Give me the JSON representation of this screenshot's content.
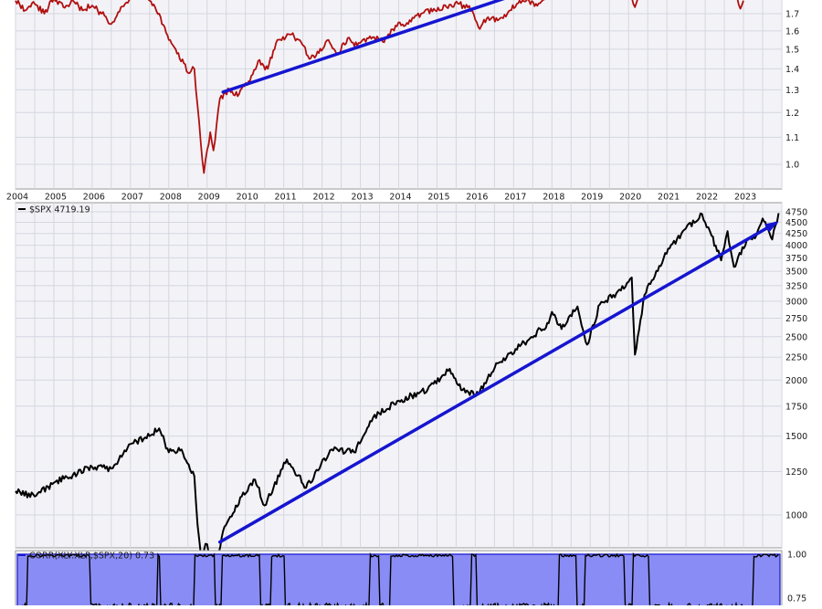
{
  "chart_data": [
    {
      "type": "line",
      "panel": "ratio",
      "series": [
        {
          "color": "#b01010",
          "points": [
            [
              "2004-01",
              1.78
            ],
            [
              "2004-04",
              1.72
            ],
            [
              "2004-07",
              1.76
            ],
            [
              "2004-10",
              1.7
            ],
            [
              "2005-01",
              1.8
            ],
            [
              "2005-04",
              1.74
            ],
            [
              "2005-07",
              1.78
            ],
            [
              "2005-10",
              1.72
            ],
            [
              "2006-01",
              1.75
            ],
            [
              "2006-04",
              1.7
            ],
            [
              "2006-07",
              1.64
            ],
            [
              "2006-10",
              1.74
            ],
            [
              "2007-01",
              1.8
            ],
            [
              "2007-04",
              1.84
            ],
            [
              "2007-07",
              1.78
            ],
            [
              "2007-10",
              1.7
            ],
            [
              "2008-01",
              1.55
            ],
            [
              "2008-04",
              1.48
            ],
            [
              "2008-07",
              1.38
            ],
            [
              "2008-09",
              1.4
            ],
            [
              "2008-11",
              1.08
            ],
            [
              "2008-12",
              0.97
            ],
            [
              "2009-02",
              1.12
            ],
            [
              "2009-03",
              1.05
            ],
            [
              "2009-05",
              1.26
            ],
            [
              "2009-08",
              1.3
            ],
            [
              "2009-11",
              1.28
            ],
            [
              "2010-02",
              1.34
            ],
            [
              "2010-05",
              1.44
            ],
            [
              "2010-08",
              1.4
            ],
            [
              "2010-11",
              1.55
            ],
            [
              "2011-03",
              1.58
            ],
            [
              "2011-06",
              1.55
            ],
            [
              "2011-09",
              1.45
            ],
            [
              "2011-12",
              1.48
            ],
            [
              "2012-03",
              1.55
            ],
            [
              "2012-06",
              1.48
            ],
            [
              "2012-09",
              1.56
            ],
            [
              "2012-12",
              1.52
            ],
            [
              "2013-04",
              1.57
            ],
            [
              "2013-08",
              1.54
            ],
            [
              "2013-12",
              1.63
            ],
            [
              "2014-04",
              1.64
            ],
            [
              "2014-08",
              1.7
            ],
            [
              "2014-12",
              1.73
            ],
            [
              "2015-04",
              1.74
            ],
            [
              "2015-08",
              1.76
            ],
            [
              "2015-12",
              1.72
            ],
            [
              "2016-02",
              1.62
            ],
            [
              "2016-05",
              1.68
            ],
            [
              "2016-08",
              1.66
            ],
            [
              "2016-11",
              1.7
            ],
            [
              "2017-02",
              1.76
            ],
            [
              "2017-05",
              1.78
            ],
            [
              "2017-08",
              1.76
            ],
            [
              "2017-11",
              1.79
            ]
          ]
        },
        {
          "color": "#b01010",
          "points": [
            [
              "2020-02",
              1.8
            ],
            [
              "2020-03",
              1.74
            ],
            [
              "2020-04",
              1.8
            ]
          ]
        },
        {
          "color": "#b01010",
          "points": [
            [
              "2022-11",
              1.8
            ],
            [
              "2022-12",
              1.73
            ],
            [
              "2023-01",
              1.78
            ]
          ]
        }
      ],
      "trendline": {
        "start": [
          "2009-06",
          1.29
        ],
        "end": [
          "2016-11",
          1.8
        ],
        "color": "#1515d0"
      },
      "y_ticks": [
        1.0,
        1.1,
        1.2,
        1.3,
        1.4,
        1.5,
        1.6,
        1.7
      ],
      "x_tick_labels": [
        "2004",
        "2005",
        "2006",
        "2007",
        "2008",
        "2009",
        "2010",
        "2011",
        "2012",
        "2013",
        "2014",
        "2015",
        "2016",
        "2017",
        "2018",
        "2019",
        "2020",
        "2021",
        "2022",
        "2023"
      ],
      "grid": true
    },
    {
      "type": "line",
      "panel": "price",
      "legend_text": "$SPX 4719.19",
      "series": [
        {
          "name": "$SPX",
          "color": "#000000",
          "points": [
            [
              "2004-01",
              1130
            ],
            [
              "2004-07",
              1100
            ],
            [
              "2005-01",
              1180
            ],
            [
              "2005-07",
              1230
            ],
            [
              "2006-01",
              1280
            ],
            [
              "2006-07",
              1270
            ],
            [
              "2007-01",
              1440
            ],
            [
              "2007-07",
              1500
            ],
            [
              "2007-10",
              1560
            ],
            [
              "2008-01",
              1380
            ],
            [
              "2008-05",
              1400
            ],
            [
              "2008-09",
              1220
            ],
            [
              "2008-10",
              950
            ],
            [
              "2008-11",
              820
            ],
            [
              "2009-01",
              860
            ],
            [
              "2009-03",
              700
            ],
            [
              "2009-06",
              920
            ],
            [
              "2009-10",
              1050
            ],
            [
              "2010-04",
              1200
            ],
            [
              "2010-07",
              1050
            ],
            [
              "2011-02",
              1330
            ],
            [
              "2011-08",
              1150
            ],
            [
              "2012-04",
              1400
            ],
            [
              "2012-11",
              1380
            ],
            [
              "2013-05",
              1650
            ],
            [
              "2014-01",
              1800
            ],
            [
              "2014-10",
              1900
            ],
            [
              "2015-05",
              2120
            ],
            [
              "2015-09",
              1900
            ],
            [
              "2016-02",
              1860
            ],
            [
              "2016-08",
              2180
            ],
            [
              "2017-03",
              2380
            ],
            [
              "2017-12",
              2680
            ],
            [
              "2018-01",
              2840
            ],
            [
              "2018-04",
              2600
            ],
            [
              "2018-09",
              2920
            ],
            [
              "2018-12",
              2400
            ],
            [
              "2019-04",
              2950
            ],
            [
              "2019-12",
              3230
            ],
            [
              "2020-02",
              3390
            ],
            [
              "2020-03",
              2280
            ],
            [
              "2020-06",
              3100
            ],
            [
              "2020-12",
              3750
            ],
            [
              "2021-06",
              4300
            ],
            [
              "2021-12",
              4700
            ],
            [
              "2022-01",
              4500
            ],
            [
              "2022-03",
              4200
            ],
            [
              "2022-06",
              3700
            ],
            [
              "2022-08",
              4300
            ],
            [
              "2022-10",
              3580
            ],
            [
              "2023-02",
              4100
            ],
            [
              "2023-05",
              4200
            ],
            [
              "2023-07",
              4590
            ],
            [
              "2023-10",
              4120
            ],
            [
              "2023-12",
              4719
            ]
          ]
        }
      ],
      "trendline": {
        "start": [
          "2009-05",
          870
        ],
        "end": [
          "2023-11",
          4480
        ],
        "color": "#1515d0"
      },
      "y_ticks": [
        1000,
        1250,
        1500,
        1750,
        2000,
        2250,
        2500,
        2750,
        3000,
        3250,
        3500,
        3750,
        4000,
        4250,
        4500,
        4750
      ],
      "grid": true
    },
    {
      "type": "area",
      "panel": "indicator",
      "legend_text": "CORR(XLY:XLP,$SPX,20) 0.73",
      "fill_color": "#8a8cf5",
      "y_ticks": [
        0.75,
        1.0
      ],
      "ylim": [
        0.7,
        1.0
      ]
    }
  ]
}
